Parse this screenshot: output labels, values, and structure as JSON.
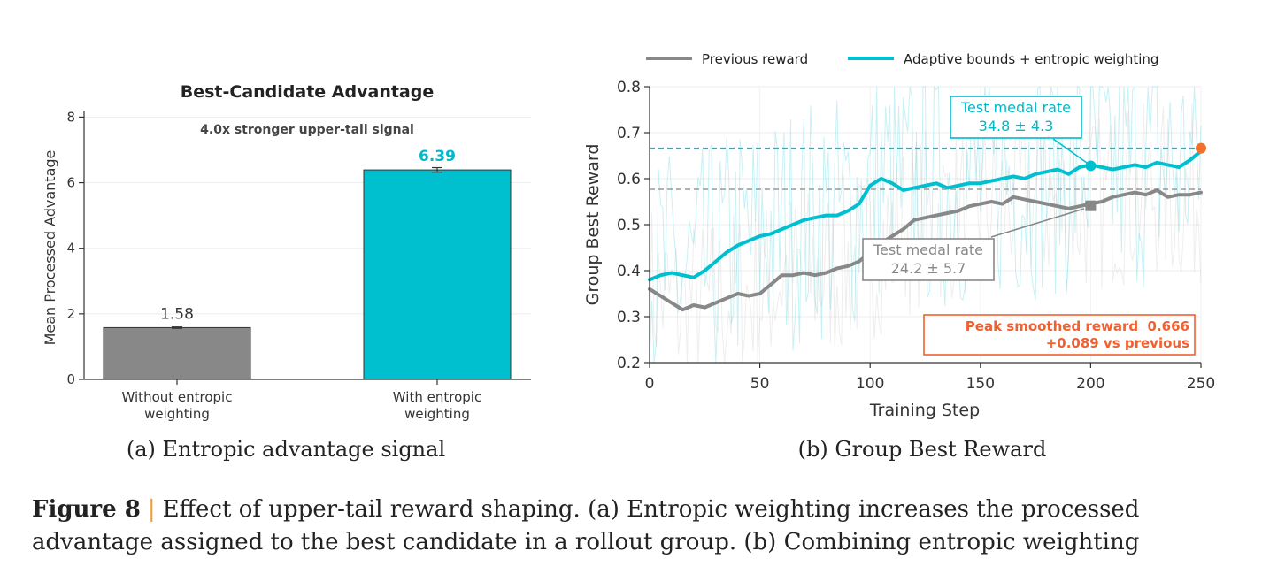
{
  "chart_data": [
    {
      "type": "bar",
      "title": "Best-Candidate Advantage",
      "annotation": "4.0x stronger upper-tail signal",
      "ylabel": "Mean Processed Advantage",
      "xlabel": "",
      "ylim": [
        0,
        8.2
      ],
      "yticks": [
        0,
        2,
        4,
        6,
        8
      ],
      "categories": [
        "Without entropic weighting",
        "With entropic weighting"
      ],
      "category_lines": [
        [
          "Without entropic",
          "weighting"
        ],
        [
          "With entropic",
          "weighting"
        ]
      ],
      "values": [
        1.58,
        6.39
      ],
      "errors": [
        0.02,
        0.07
      ],
      "value_labels": [
        "1.58",
        "6.39"
      ],
      "colors": [
        "#888888",
        "#00c0d0"
      ],
      "label_colors": [
        "#333333",
        "#00b8cc"
      ],
      "grid": true,
      "subcaption": "(a) Entropic advantage signal"
    },
    {
      "type": "line",
      "ylabel": "Group Best Reward",
      "xlabel": "Training Step",
      "xlim": [
        0,
        250
      ],
      "ylim": [
        0.2,
        0.8
      ],
      "xticks": [
        0,
        50,
        100,
        150,
        200,
        250
      ],
      "yticks": [
        0.2,
        0.3,
        0.4,
        0.5,
        0.6,
        0.7,
        0.8
      ],
      "grid": true,
      "legend_position": "top",
      "series": [
        {
          "name": "Previous reward",
          "color": "#888888",
          "x": [
            0,
            10,
            15,
            20,
            25,
            30,
            35,
            40,
            45,
            50,
            55,
            60,
            65,
            70,
            75,
            80,
            85,
            90,
            95,
            100,
            105,
            110,
            115,
            120,
            125,
            130,
            135,
            140,
            145,
            150,
            155,
            160,
            165,
            170,
            175,
            180,
            185,
            190,
            195,
            200,
            205,
            210,
            215,
            220,
            225,
            230,
            235,
            240,
            245,
            250
          ],
          "values": [
            0.36,
            0.33,
            0.315,
            0.325,
            0.32,
            0.33,
            0.34,
            0.35,
            0.345,
            0.35,
            0.37,
            0.39,
            0.39,
            0.395,
            0.39,
            0.395,
            0.405,
            0.41,
            0.42,
            0.44,
            0.46,
            0.475,
            0.49,
            0.51,
            0.515,
            0.52,
            0.525,
            0.53,
            0.54,
            0.545,
            0.55,
            0.545,
            0.56,
            0.555,
            0.55,
            0.545,
            0.54,
            0.535,
            0.54,
            0.545,
            0.55,
            0.56,
            0.565,
            0.57,
            0.565,
            0.575,
            0.56,
            0.565,
            0.565,
            0.57
          ]
        },
        {
          "name": "Adaptive bounds + entropic weighting",
          "color": "#00c0d0",
          "x": [
            0,
            5,
            10,
            15,
            20,
            25,
            30,
            35,
            40,
            45,
            50,
            55,
            60,
            65,
            70,
            75,
            80,
            85,
            90,
            95,
            100,
            105,
            110,
            115,
            120,
            125,
            130,
            135,
            140,
            145,
            150,
            155,
            160,
            165,
            170,
            175,
            180,
            185,
            190,
            195,
            200,
            205,
            210,
            215,
            220,
            225,
            230,
            235,
            240,
            245,
            250
          ],
          "values": [
            0.38,
            0.39,
            0.395,
            0.39,
            0.385,
            0.4,
            0.42,
            0.44,
            0.455,
            0.465,
            0.475,
            0.48,
            0.49,
            0.5,
            0.51,
            0.515,
            0.52,
            0.52,
            0.53,
            0.545,
            0.585,
            0.6,
            0.59,
            0.575,
            0.58,
            0.585,
            0.59,
            0.58,
            0.585,
            0.59,
            0.59,
            0.595,
            0.6,
            0.605,
            0.6,
            0.61,
            0.615,
            0.62,
            0.61,
            0.625,
            0.63,
            0.625,
            0.62,
            0.625,
            0.63,
            0.625,
            0.635,
            0.63,
            0.625,
            0.64,
            0.66
          ]
        }
      ],
      "reference_lines": [
        {
          "y": 0.666,
          "color": "#00c0d0"
        },
        {
          "y": 0.577,
          "color": "#999999"
        }
      ],
      "markers": [
        {
          "x": 200,
          "y": 0.628,
          "shape": "circle",
          "color": "#00c0d0"
        },
        {
          "x": 200,
          "y": 0.541,
          "shape": "square",
          "color": "#888888"
        },
        {
          "x": 250,
          "y": 0.666,
          "shape": "circle",
          "color": "#f07030"
        }
      ],
      "annotations": {
        "cyan_box": {
          "lines": [
            "Test medal rate",
            "34.8 ± 4.3"
          ],
          "color": "#00b8cc"
        },
        "gray_box": {
          "lines": [
            "Test medal rate",
            "24.2 ± 5.7"
          ],
          "color": "#888888"
        },
        "peak_box": {
          "lines": [
            "Peak smoothed reward  0.666",
            "+0.089 vs previous"
          ],
          "color": "#f06030"
        }
      },
      "subcaption": "(b) Group Best Reward"
    }
  ],
  "caption": {
    "label": "Figure 8",
    "separator": "|",
    "line1": "Effect of upper-tail reward shaping. (a) Entropic weighting increases the processed",
    "line2": "advantage assigned to the best candidate in a rollout group. (b) Combining entropic weighting"
  }
}
